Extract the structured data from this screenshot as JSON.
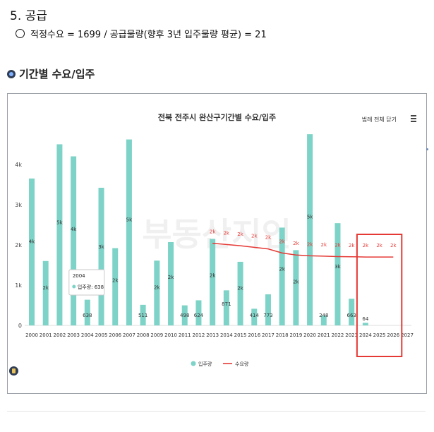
{
  "heading": "5. 공급",
  "subline": "적정수요 = 1699 / 공급물량(향후 3년 입주물량 평균) = 21",
  "section_title": "기간별 수요/입주",
  "chart": {
    "title": "전북 전주시 완산구기간별 수요/입주",
    "legend_toggle": "범례 전체 닫기",
    "watermark": "부동산지인",
    "tooltip": {
      "year": "2004",
      "label": "입주량: 638"
    }
  },
  "colors": {
    "bar": "#7dd3c7",
    "demand": "#e53935",
    "highlight_box": "#e53935"
  },
  "chart_data": {
    "type": "bar",
    "categories": [
      "2000",
      "2001",
      "2002",
      "2003",
      "2004",
      "2005",
      "2006",
      "2007",
      "2008",
      "2009",
      "2010",
      "2011",
      "2012",
      "2013",
      "2014",
      "2015",
      "2016",
      "2017",
      "2018",
      "2019",
      "2020",
      "2021",
      "2022",
      "2023",
      "2024",
      "2025",
      "2026",
      "2027"
    ],
    "y_ticks": [
      "0",
      "1k",
      "2k",
      "3k",
      "4k"
    ],
    "ylim": [
      0,
      4700
    ],
    "series": [
      {
        "name": "입주량",
        "type": "bar",
        "values": [
          3650,
          1600,
          4500,
          4200,
          638,
          3420,
          1920,
          4620,
          511,
          1610,
          2070,
          498,
          624,
          2150,
          871,
          1580,
          414,
          773,
          2430,
          1870,
          4750,
          248,
          2540,
          663,
          64,
          0,
          0,
          0
        ],
        "labels": [
          "4k",
          "2k",
          "5k",
          "4k",
          "638",
          "3k",
          "2k",
          "5k",
          "511",
          "2k",
          "2k",
          "498",
          "624",
          "2k",
          "871",
          "2k",
          "414",
          "773",
          "2k",
          "2k",
          "5k",
          "248",
          "3k",
          "663",
          "64",
          "",
          "",
          ""
        ]
      },
      {
        "name": "수요량",
        "type": "line",
        "values": [
          null,
          null,
          null,
          null,
          null,
          null,
          null,
          null,
          null,
          null,
          null,
          null,
          null,
          2040,
          2010,
          1980,
          1940,
          1900,
          1800,
          1750,
          1730,
          1720,
          1710,
          1705,
          1700,
          1700,
          1700,
          null
        ],
        "labels": [
          "",
          "",
          "",
          "",
          "",
          "",
          "",
          "",
          "",
          "",
          "",
          "",
          "",
          "2k",
          "2k",
          "2k",
          "2k",
          "2k",
          "2k",
          "2k",
          "2k",
          "2k",
          "2k",
          "2k",
          "2k",
          "2k",
          "2k",
          ""
        ]
      }
    ],
    "highlight_range": [
      "2024",
      "2026"
    ],
    "legend_position": "bottom"
  }
}
